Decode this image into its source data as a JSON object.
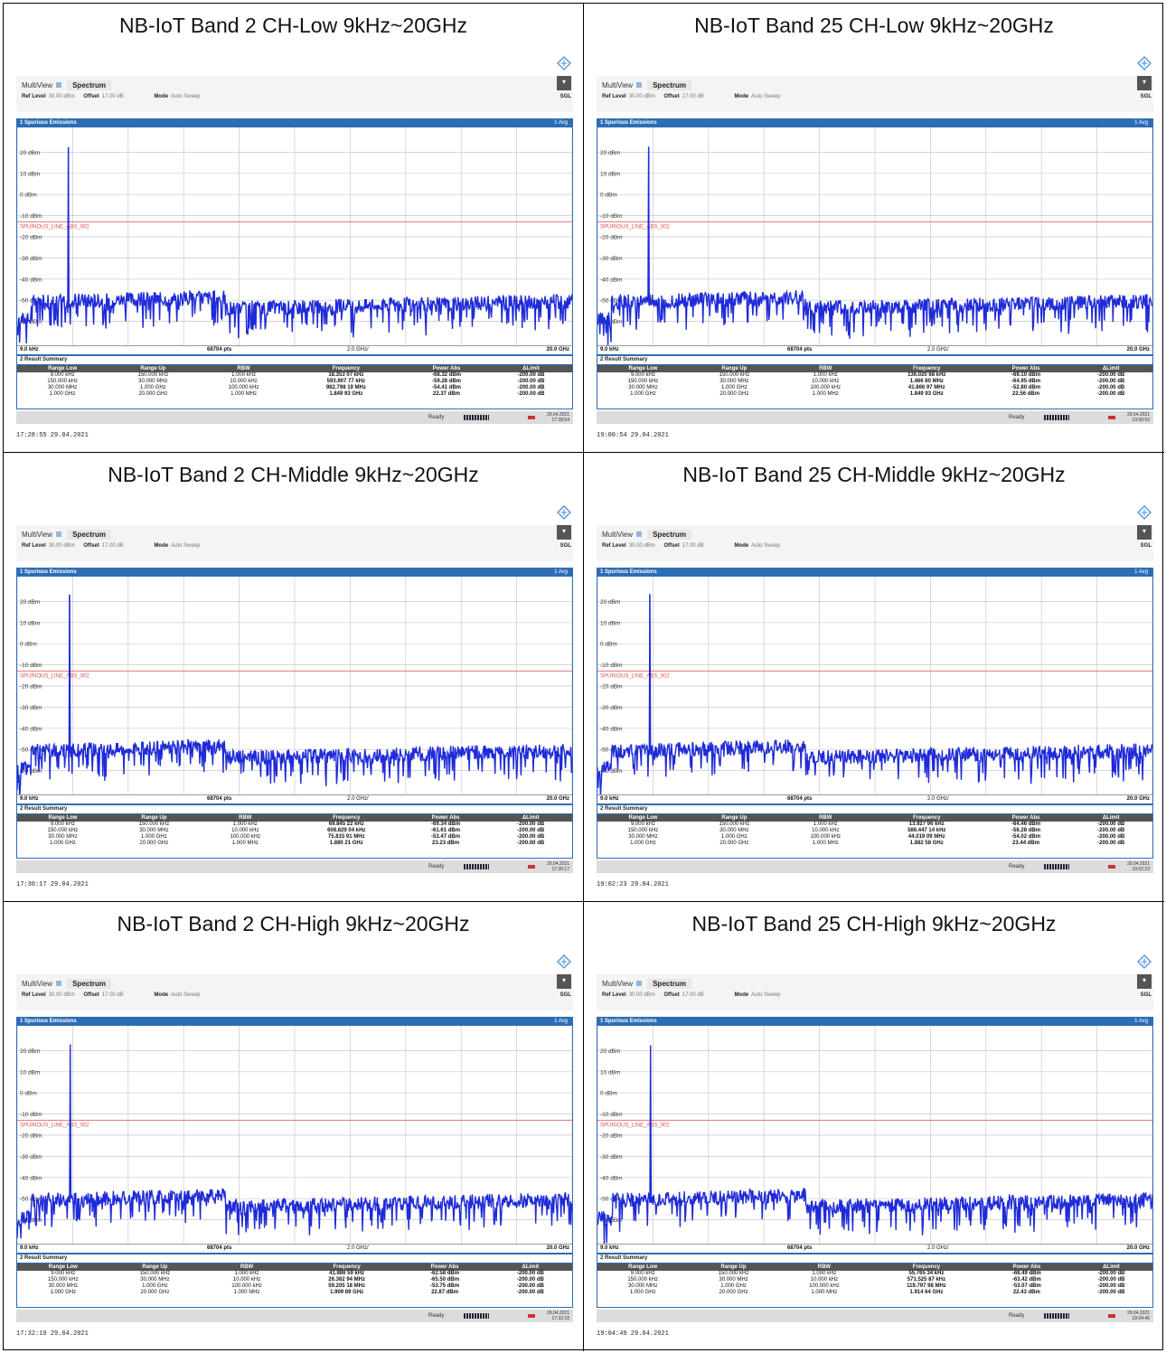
{
  "panels": [
    {
      "title": "NB-IoT Band 2 CH-Low 9kHz~20GHz",
      "peak_dbm": 22.37,
      "rows": [
        [
          "9.000 kHz",
          "150.000 kHz",
          "1.000 kHz",
          "18.353 07 kHz",
          "-68.32 dBm",
          "-200.00 dB"
        ],
        [
          "150.000 kHz",
          "30.000 MHz",
          "10.000 kHz",
          "593.907 77 kHz",
          "-59.28 dBm",
          "-200.00 dB"
        ],
        [
          "30.000 MHz",
          "1.000 GHz",
          "100.000 kHz",
          "982.798 19 MHz",
          "-54.41 dBm",
          "-200.00 dB"
        ],
        [
          "1.000 GHz",
          "20.000 GHz",
          "1.000 MHz",
          "1.849 93 GHz",
          "22.37 dBm",
          "-200.00 dB"
        ]
      ],
      "status_date": "29.04.2021",
      "status_time": "17:28:54",
      "caption": "17:28:55  29.04.2021"
    },
    {
      "title": "NB-IoT Band 25 CH-Low 9kHz~20GHz",
      "peak_dbm": 22.56,
      "rows": [
        [
          "9.000 kHz",
          "150.000 kHz",
          "1.000 kHz",
          "136.020 68 kHz",
          "-69.10 dBm",
          "-200.00 dB"
        ],
        [
          "150.000 kHz",
          "30.000 MHz",
          "10.000 kHz",
          "1.466 80 MHz",
          "-64.95 dBm",
          "-200.00 dB"
        ],
        [
          "30.000 MHz",
          "1.000 GHz",
          "100.000 kHz",
          "41.866 97 MHz",
          "-52.80 dBm",
          "-200.00 dB"
        ],
        [
          "1.000 GHz",
          "20.000 GHz",
          "1.000 MHz",
          "1.849 93 GHz",
          "22.56 dBm",
          "-200.00 dB"
        ]
      ],
      "status_date": "29.04.2021",
      "status_time": "19:00:53",
      "caption": "19:00:54  29.04.2021"
    },
    {
      "title": "NB-IoT Band 2 CH-Middle 9kHz~20GHz",
      "peak_dbm": 23.23,
      "rows": [
        [
          "9.000 kHz",
          "150.000 kHz",
          "1.000 kHz",
          "69.845 22 kHz",
          "-69.34 dBm",
          "-200.00 dB"
        ],
        [
          "150.000 kHz",
          "30.000 MHz",
          "10.000 kHz",
          "608.829 04 kHz",
          "-61.61 dBm",
          "-200.00 dB"
        ],
        [
          "30.000 MHz",
          "1.000 GHz",
          "100.000 kHz",
          "75.815 91 MHz",
          "-53.47 dBm",
          "-200.00 dB"
        ],
        [
          "1.000 GHz",
          "20.000 GHz",
          "1.000 MHz",
          "1.880 21 GHz",
          "23.23 dBm",
          "-200.00 dB"
        ]
      ],
      "status_date": "29.04.2021",
      "status_time": "17:30:17",
      "caption": "17:30:17  29.04.2021"
    },
    {
      "title": "NB-IoT Band 25 CH-Middle 9kHz~20GHz",
      "peak_dbm": 23.44,
      "rows": [
        [
          "9.000 kHz",
          "150.000 kHz",
          "1.000 kHz",
          "13.927 96 kHz",
          "-64.46 dBm",
          "-200.00 dB"
        ],
        [
          "150.000 kHz",
          "30.000 MHz",
          "10.000 kHz",
          "586.447 14 kHz",
          "-56.28 dBm",
          "-200.00 dB"
        ],
        [
          "30.000 MHz",
          "1.000 GHz",
          "100.000 kHz",
          "44.019 09 MHz",
          "-54.02 dBm",
          "-200.00 dB"
        ],
        [
          "1.000 GHz",
          "20.000 GHz",
          "1.000 MHz",
          "1.882 58 GHz",
          "23.44 dBm",
          "-200.00 dB"
        ]
      ],
      "status_date": "29.04.2021",
      "status_time": "19:02:23",
      "caption": "19:02:23  29.04.2021"
    },
    {
      "title": "NB-IoT Band 2 CH-High 9kHz~20GHz",
      "peak_dbm": 22.87,
      "rows": [
        [
          "9.000 kHz",
          "150.000 kHz",
          "1.000 kHz",
          "41.886 59 kHz",
          "-62.58 dBm",
          "-200.00 dB"
        ],
        [
          "150.000 kHz",
          "30.000 MHz",
          "10.000 kHz",
          "26.362 94 MHz",
          "-65.50 dBm",
          "-200.00 dB"
        ],
        [
          "30.000 MHz",
          "1.000 GHz",
          "100.000 kHz",
          "59.205 18 MHz",
          "-53.75 dBm",
          "-200.00 dB"
        ],
        [
          "1.000 GHz",
          "20.000 GHz",
          "1.000 MHz",
          "1.909 89 GHz",
          "22.87 dBm",
          "-200.00 dB"
        ]
      ],
      "status_date": "29.04.2021",
      "status_time": "17:32:18",
      "caption": "17:32:19  29.04.2021"
    },
    {
      "title": "NB-IoT Band 25 CH-High 9kHz~20GHz",
      "peak_dbm": 22.43,
      "rows": [
        [
          "9.000 kHz",
          "150.000 kHz",
          "1.000 kHz",
          "55.765 34 kHz",
          "-68.49 dBm",
          "-200.00 dB"
        ],
        [
          "150.000 kHz",
          "30.000 MHz",
          "10.000 kHz",
          "571.525 87 kHz",
          "-63.42 dBm",
          "-200.00 dB"
        ],
        [
          "30.000 MHz",
          "1.000 GHz",
          "100.000 kHz",
          "119.797 98 MHz",
          "-53.07 dBm",
          "-200.00 dB"
        ],
        [
          "1.000 GHz",
          "20.000 GHz",
          "1.000 MHz",
          "1.914 64 GHz",
          "22.43 dBm",
          "-200.00 dB"
        ]
      ],
      "status_date": "29.04.2021",
      "status_time": "19:04:46",
      "caption": "19:04:49  29.04.2021"
    }
  ],
  "analyzer": {
    "tab_multiview": "MultiView",
    "tab_spectrum": "Spectrum",
    "ref_level_label": "Ref Level",
    "ref_level_value": "30.00 dBm",
    "offset_label": "Offset",
    "offset_value": "17.00 dB",
    "mode_label": "Mode",
    "mode_value": "Auto Sweep",
    "sgl": "SGL",
    "window1_title": "1 Spurious Emissions",
    "avg_label": "1 Avg",
    "y_ticks": [
      "20 dBm",
      "10 dBm",
      "0 dBm",
      "-10 dBm",
      "-20 dBm",
      "-30 dBm",
      "-40 dBm",
      "-50 dBm",
      "-60 dBm"
    ],
    "limit_line_label": "SPURIOUS_LINE_ABS_002",
    "limit_dbm": -13,
    "ref_level_dbm": 30,
    "ymin_dbm": -70,
    "x_start": "9.0 kHz",
    "x_points": "68704 pts",
    "x_div": "2.0 GHz/",
    "x_stop": "20.0 GHz",
    "window2_title": "2 Result Summary",
    "columns": [
      "Range Low",
      "Range Up",
      "RBW",
      "Frequency",
      "Power Abs",
      "ΔLimit"
    ],
    "status_ready": "Ready",
    "colors": {
      "trace": "#1f2bd8",
      "window": "#2d6db5",
      "limit": "#e05050"
    }
  }
}
